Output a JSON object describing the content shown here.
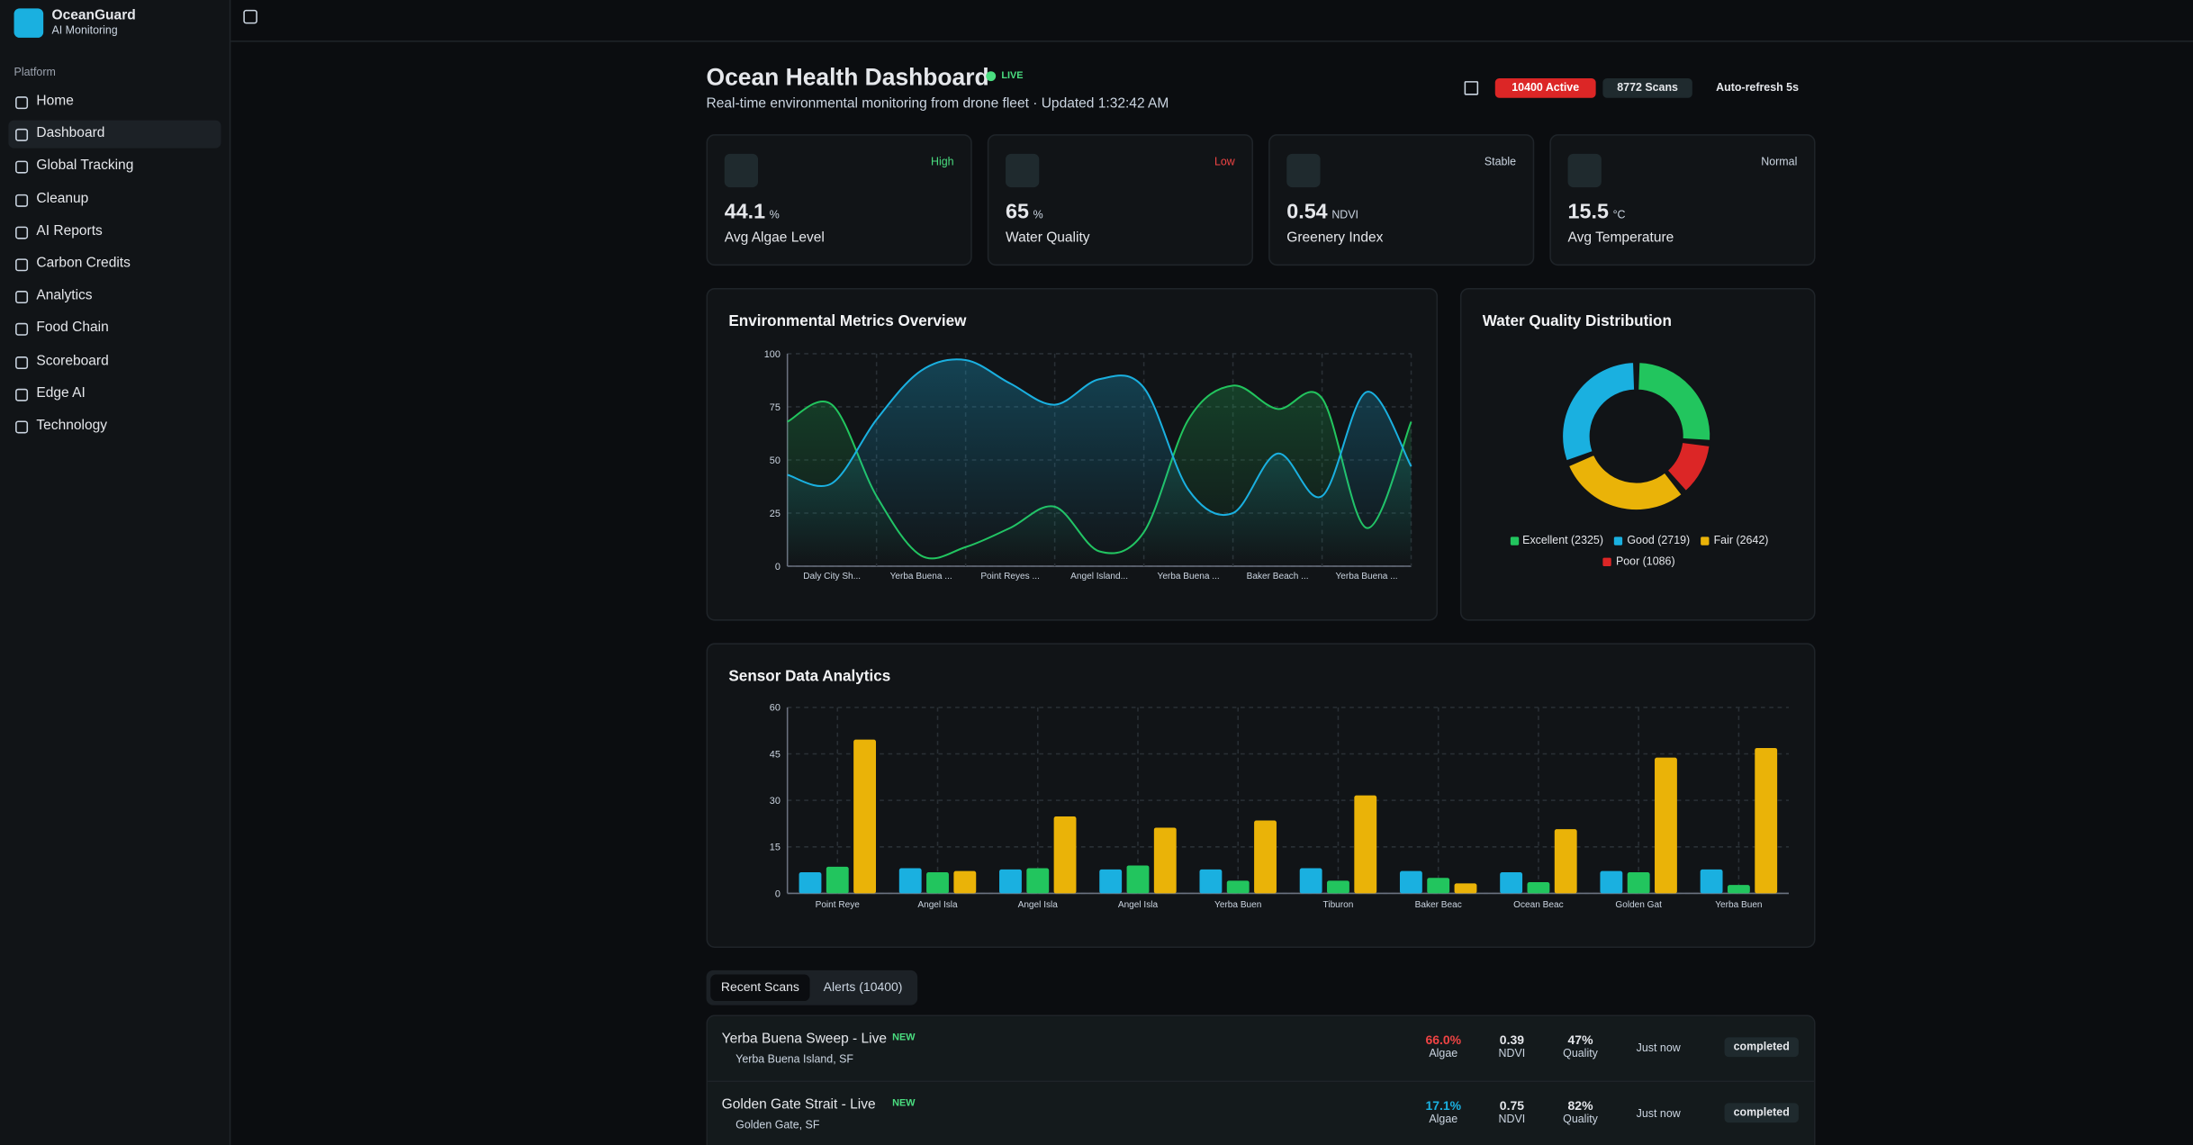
{
  "sidebar": {
    "app_name": "OceanGuard",
    "app_sub": "AI Monitoring",
    "section": "Platform",
    "items": [
      "Home",
      "Dashboard",
      "Global Tracking",
      "Cleanup",
      "AI Reports",
      "Carbon Credits",
      "Analytics",
      "Food Chain",
      "Scoreboard",
      "Edge AI",
      "Technology"
    ],
    "active": 1
  },
  "header": {
    "title": "Ocean Health Dashboard",
    "live": "LIVE",
    "subtitle": "Real-time environmental monitoring from drone fleet · Updated 1:32:42 AM",
    "active": "10400 Active",
    "scans": "8772 Scans",
    "refresh": "Auto-refresh 5s"
  },
  "stats": [
    {
      "trend": "High",
      "trend_color": "#4ade80",
      "value": "44.1",
      "unit": "%",
      "label": "Avg Algae Level"
    },
    {
      "trend": "Low",
      "trend_color": "#ef4444",
      "value": "65",
      "unit": "%",
      "label": "Water Quality"
    },
    {
      "trend": "Stable",
      "trend_color": "#cbd5e1",
      "value": "0.54",
      "unit": "NDVI",
      "label": "Greenery Index"
    },
    {
      "trend": "Normal",
      "trend_color": "#cbd5e1",
      "value": "15.5",
      "unit": "°C",
      "label": "Avg Temperature"
    }
  ],
  "chart_data": [
    {
      "type": "line",
      "title": "Environmental Metrics Overview",
      "categories": [
        null,
        "Daly City Sh...",
        null,
        "Yerba Buena ...",
        null,
        "Point Reyes ...",
        null,
        "Angel Island...",
        null,
        "Yerba Buena ...",
        null,
        "Baker Beach ...",
        null,
        "Yerba Buena ...",
        null
      ],
      "series": [
        {
          "color": "#22c55e",
          "values": [
            68,
            76,
            33,
            5,
            9,
            18,
            28,
            7,
            16,
            69,
            85,
            74,
            79,
            18,
            68
          ]
        },
        {
          "color": "#1ab0e0",
          "values": [
            43,
            39,
            69,
            92,
            97,
            86,
            76,
            88,
            84,
            36,
            25,
            53,
            33,
            82,
            47
          ]
        }
      ],
      "ylim": [
        0,
        100
      ],
      "yticks": [
        0,
        25,
        50,
        75,
        100
      ],
      "grid": true
    },
    {
      "type": "pie",
      "title": "Water Quality Distribution",
      "labels": [
        "Excellent",
        "Good",
        "Fair",
        "Poor"
      ],
      "legend": [
        "Excellent (2325)",
        "Good (2719)",
        "Fair (2642)",
        "Poor (1086)"
      ],
      "values": [
        2325,
        2719,
        2642,
        1086
      ],
      "colors": [
        "#22c55e",
        "#1ab0e0",
        "#eab308",
        "#dc2626"
      ],
      "donut": true
    },
    {
      "type": "bar",
      "title": "Sensor Data Analytics",
      "categories": [
        "Point Reye",
        "Angel Isla",
        "Angel Isla",
        "Angel Isla",
        "Yerba Buen",
        "Tiburon",
        "Baker Beac",
        "Ocean Beac",
        "Golden Gat",
        "Yerba Buen"
      ],
      "series": [
        {
          "color": "#1ab0e0",
          "values": [
            6.8,
            8.1,
            7.7,
            7.7,
            7.7,
            8.1,
            7.2,
            6.8,
            7.2,
            7.7
          ]
        },
        {
          "color": "#22c55e",
          "values": [
            8.6,
            6.8,
            8.1,
            9.0,
            4.1,
            4.1,
            5.0,
            3.6,
            6.8,
            2.7
          ]
        },
        {
          "color": "#eab308",
          "values": [
            49.6,
            7.2,
            24.8,
            21.2,
            23.5,
            31.6,
            3.2,
            20.7,
            43.8,
            46.9
          ]
        }
      ],
      "ylim": [
        0,
        60
      ],
      "yticks": [
        0,
        15,
        30,
        45,
        60
      ],
      "grid": true
    }
  ],
  "tabs": [
    "Recent Scans",
    "Alerts (10400)"
  ],
  "scans": [
    {
      "title": "Yerba Buena Sweep - Live",
      "badge": "NEW",
      "location": "Yerba Buena Island, SF",
      "algae": "66.0%",
      "algae_color": "#ef4444",
      "algae_label": "Algae",
      "ndvi": "0.39",
      "ndvi_label": "NDVI",
      "quality": "47%",
      "quality_label": "Quality",
      "time": "Just now",
      "status": "completed"
    },
    {
      "title": "Golden Gate Strait - Live",
      "badge": "NEW",
      "location": "Golden Gate, SF",
      "algae": "17.1%",
      "algae_color": "#1ab0e0",
      "algae_label": "Algae",
      "ndvi": "0.75",
      "ndvi_label": "NDVI",
      "quality": "82%",
      "quality_label": "Quality",
      "time": "Just now",
      "status": "completed"
    }
  ]
}
